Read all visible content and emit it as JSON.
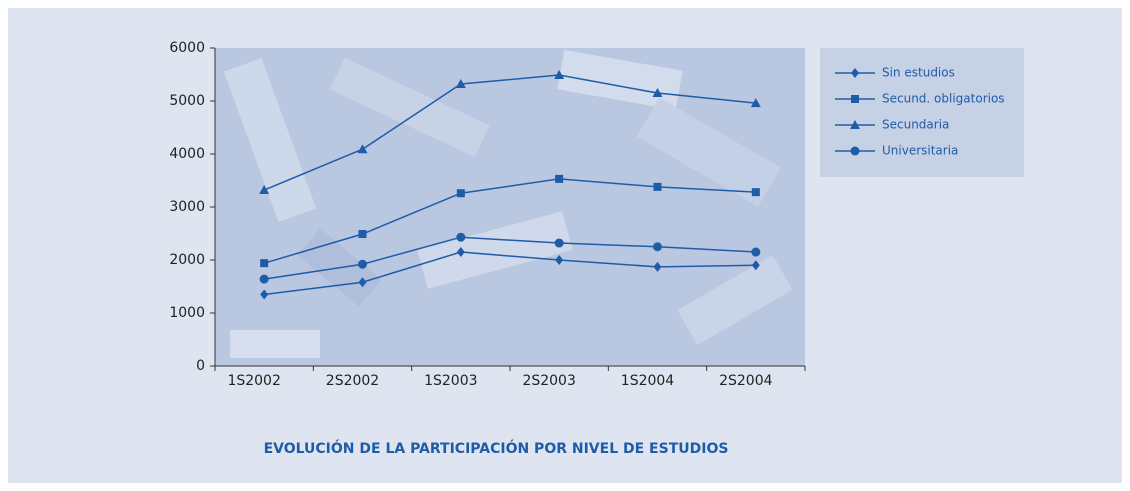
{
  "chart_data": {
    "type": "line",
    "title": "EVOLUCIÓN DE LA PARTICIPACIÓN POR NIVEL DE ESTUDIOS",
    "categories": [
      "1S2002",
      "2S2002",
      "1S2003",
      "2S2003",
      "1S2004",
      "2S2004"
    ],
    "series": [
      {
        "name": "Sin estudios",
        "color": "#1f5ca8",
        "marker": "diamond",
        "values": [
          1350,
          1580,
          2150,
          2000,
          1870,
          1900
        ]
      },
      {
        "name": "Secund. obligatorios",
        "color": "#1f5ca8",
        "marker": "square",
        "values": [
          1940,
          2490,
          3260,
          3530,
          3380,
          3280
        ]
      },
      {
        "name": "Secundaria",
        "color": "#1f5ca8",
        "marker": "triangle",
        "values": [
          3320,
          4090,
          5320,
          5490,
          5150,
          4960
        ]
      },
      {
        "name": "Universitaria",
        "color": "#1f5ca8",
        "marker": "circle",
        "values": [
          1640,
          1920,
          2430,
          2320,
          2250,
          2150
        ]
      }
    ],
    "ylim": [
      0,
      6000
    ],
    "yticks": [
      0,
      1000,
      2000,
      3000,
      4000,
      5000,
      6000
    ],
    "legend": "right"
  }
}
